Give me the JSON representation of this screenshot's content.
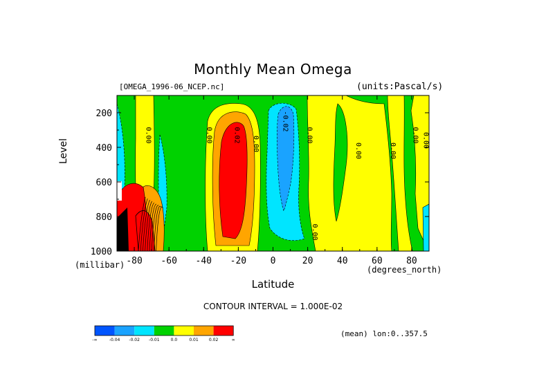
{
  "header": {
    "title": "Monthly Mean Omega",
    "dataset": "[OMEGA_1996-06_NCEP.nc]",
    "units": "(units:Pascal/s)",
    "contour_interval": "CONTOUR INTERVAL = 1.000E-02",
    "subtitle": "(mean) lon:0..357.5"
  },
  "chart_data": {
    "type": "heatmap",
    "title": "Monthly Mean Omega",
    "xlabel": "Latitude",
    "ylabel": "Level",
    "x_unit": "(degrees_north)",
    "y_unit": "(millibar)",
    "xlim": [
      -90,
      90
    ],
    "ylim": [
      1000,
      100
    ],
    "y_reversed": true,
    "x_ticks": [
      -80,
      -60,
      -40,
      -20,
      0,
      20,
      40,
      60,
      80
    ],
    "x_tick_labels": [
      "-80",
      "-60",
      "-40",
      "-20",
      "0",
      "20",
      "40",
      "60",
      "80"
    ],
    "y_ticks": [
      200,
      400,
      600,
      800,
      1000
    ],
    "y_tick_labels": [
      "200",
      "400",
      "600",
      "800",
      "1000"
    ],
    "contour_interval": 0.01,
    "contour_labels": [
      {
        "x": -73,
        "y": 330,
        "text": "0.00"
      },
      {
        "x": -38,
        "y": 330,
        "text": "0.00"
      },
      {
        "x": -22,
        "y": 330,
        "text": "0.02"
      },
      {
        "x": -11,
        "y": 380,
        "text": "0.00"
      },
      {
        "x": 6,
        "y": 250,
        "text": "-0.02"
      },
      {
        "x": 20,
        "y": 330,
        "text": "0.00"
      },
      {
        "x": 48,
        "y": 420,
        "text": "0.00"
      },
      {
        "x": 68,
        "y": 420,
        "text": "0.00"
      },
      {
        "x": 81,
        "y": 330,
        "text": "0.00"
      },
      {
        "x": 87,
        "y": 360,
        "text": "0.00"
      },
      {
        "x": 23,
        "y": 890,
        "text": "0.00"
      }
    ],
    "colorbar": {
      "colors": [
        "#0055ff",
        "#1aa3ff",
        "#00e5ff",
        "#00d200",
        "#ffff00",
        "#ffa500",
        "#ff0000"
      ],
      "labels": [
        "-∞",
        "-0.04",
        "-0.02",
        "-0.01",
        "0.0",
        "0.01",
        "0.02",
        "∞"
      ]
    },
    "grid": false
  }
}
